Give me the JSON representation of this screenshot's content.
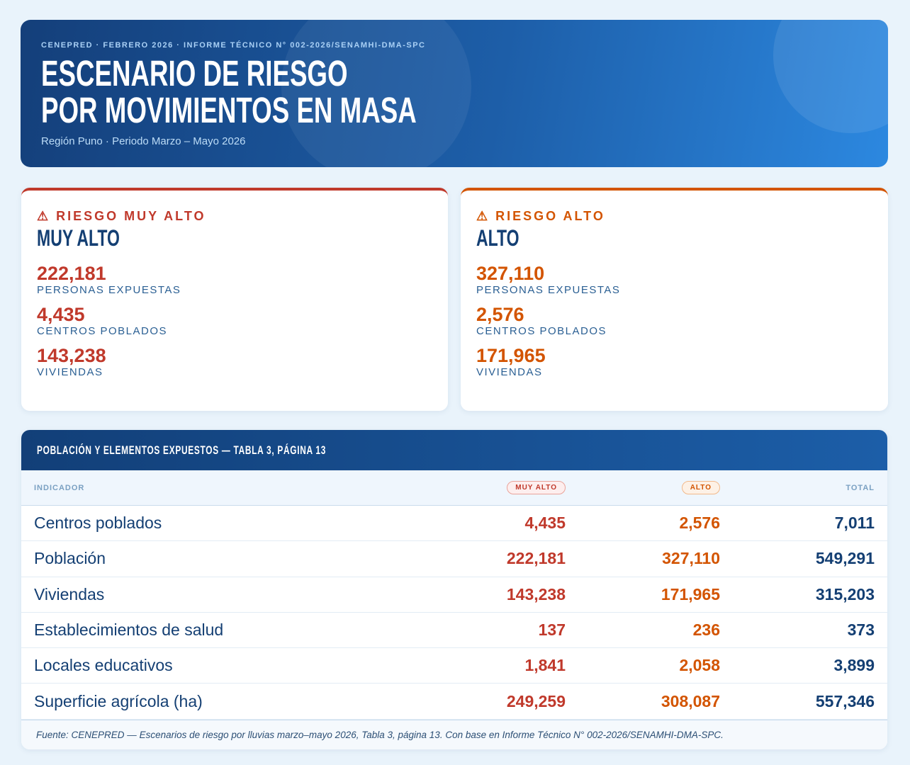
{
  "colors": {
    "muy_alto": "#c0392b",
    "alto": "#d35400",
    "navy": "#143f73"
  },
  "header": {
    "eyebrow": "CENEPRED · FEBRERO 2026 · INFORME TÉCNICO N° 002-2026/SENAMHI-DMA-SPC",
    "title_line1": "ESCENARIO DE RIESGO",
    "title_line2": "POR MOVIMIENTOS EN MASA",
    "subtitle": "Región Puno · Periodo Marzo – Mayo 2026"
  },
  "cards": [
    {
      "icon": "warning-icon",
      "label": "RIESGO MUY ALTO",
      "level": "MUY ALTO",
      "stats": [
        {
          "value": "222,181",
          "label": "PERSONAS EXPUESTAS"
        },
        {
          "value": "4,435",
          "label": "CENTROS POBLADOS"
        },
        {
          "value": "143,238",
          "label": "VIVIENDAS"
        }
      ]
    },
    {
      "icon": "warning-icon",
      "label": "RIESGO ALTO",
      "level": "ALTO",
      "stats": [
        {
          "value": "327,110",
          "label": "PERSONAS EXPUESTAS"
        },
        {
          "value": "2,576",
          "label": "CENTROS POBLADOS"
        },
        {
          "value": "171,965",
          "label": "VIVIENDAS"
        }
      ]
    }
  ],
  "table": {
    "title": "POBLACIÓN Y ELEMENTOS EXPUESTOS — TABLA 3, PÁGINA 13",
    "columns": [
      "INDICADOR",
      "MUY ALTO",
      "ALTO",
      "TOTAL"
    ],
    "rows": [
      [
        "Centros poblados",
        "4,435",
        "2,576",
        "7,011"
      ],
      [
        "Población",
        "222,181",
        "327,110",
        "549,291"
      ],
      [
        "Viviendas",
        "143,238",
        "171,965",
        "315,203"
      ],
      [
        "Establecimientos de salud",
        "137",
        "236",
        "373"
      ],
      [
        "Locales educativos",
        "1,841",
        "2,058",
        "3,899"
      ],
      [
        "Superficie agrícola (ha)",
        "249,259",
        "308,087",
        "557,346"
      ]
    ],
    "source_label": "Fuente:",
    "source": "CENEPRED — Escenarios de riesgo por lluvias marzo–mayo 2026, Tabla 3, página 13. Con base en Informe Técnico N° 002-2026/SENAMHI-DMA-SPC."
  }
}
